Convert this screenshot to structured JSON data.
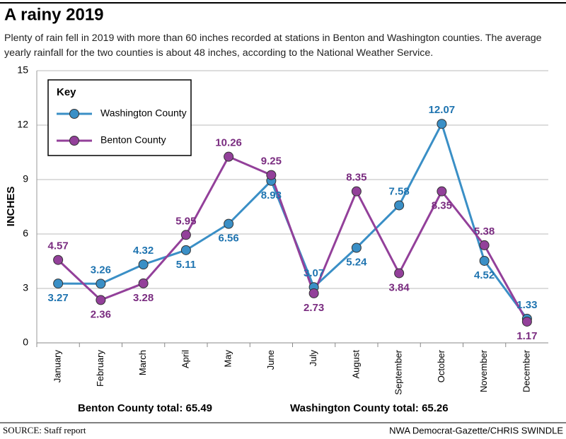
{
  "chart_data": {
    "type": "line",
    "title": "A rainy 2019",
    "subtitle": [
      "Plenty of rain fell in 2019 with more than 60 inches recorded at stations in Benton and Washington counties. The average",
      "yearly rainfall for the two counties is about 48 inches, according to the National Weather Service."
    ],
    "y_label": "INCHES",
    "categories": [
      "January",
      "February",
      "March",
      "April",
      "May",
      "June",
      "July",
      "August",
      "September",
      "October",
      "November",
      "December"
    ],
    "series": [
      {
        "name": "Washington County",
        "color": "#3a8fc6",
        "label_color": "#1f74b0",
        "values": [
          3.27,
          3.26,
          4.32,
          5.11,
          6.56,
          8.93,
          3.07,
          5.24,
          7.58,
          12.07,
          4.52,
          1.33
        ]
      },
      {
        "name": "Benton County",
        "color": "#93409a",
        "label_color": "#7a2c80",
        "values": [
          4.57,
          2.36,
          3.28,
          5.95,
          10.26,
          9.25,
          2.73,
          8.35,
          3.84,
          8.35,
          5.38,
          1.17
        ]
      }
    ],
    "ylim": [
      0,
      15
    ],
    "yticks": [
      0,
      3,
      6,
      9,
      12,
      15
    ],
    "grid": true,
    "legend": "upper-left",
    "legend_title": "Key",
    "annotations": [
      "Benton County total: 65.49",
      "Washington County total: 65.26"
    ],
    "source": "SOURCE: Staff report",
    "credit": "NWA Democrat-Gazette/CHRIS SWINDLE"
  }
}
